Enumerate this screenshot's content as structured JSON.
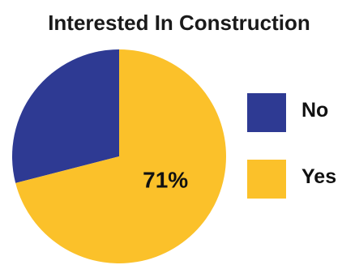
{
  "chart_data": {
    "type": "pie",
    "title": "Interested In Construction",
    "categories": [
      "No",
      "Yes"
    ],
    "values": [
      29,
      71
    ],
    "colors": [
      "#2e3a93",
      "#fbc12a"
    ],
    "data_labels": [
      "",
      "71%"
    ],
    "legend": {
      "placement": "right",
      "entries": [
        "No",
        "Yes"
      ]
    }
  }
}
